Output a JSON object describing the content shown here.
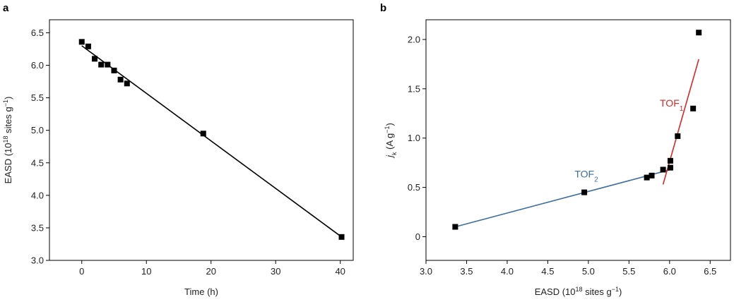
{
  "chart_data": [
    {
      "panel": "a",
      "type": "scatter",
      "xlabel": "Time (h)",
      "ylabel": {
        "base": "EASD (10",
        "exp1": "18",
        "mid": " sites g",
        "exp2": "−1",
        "end": ")"
      },
      "xlim": [
        -5,
        42
      ],
      "ylim": [
        3.0,
        6.7
      ],
      "xticks": [
        0,
        10,
        20,
        30,
        40
      ],
      "xtick_labels": [
        "0",
        "10",
        "20",
        "30",
        "40"
      ],
      "yticks": [
        3.0,
        3.5,
        4.0,
        4.5,
        5.0,
        5.5,
        6.0,
        6.5
      ],
      "ytick_labels": [
        "3.0",
        "3.5",
        "4.0",
        "4.5",
        "5.0",
        "5.5",
        "6.0",
        "6.5"
      ],
      "series": [
        {
          "marker": "square",
          "color": "#000000",
          "x": [
            0,
            1,
            2,
            3,
            4,
            5,
            6,
            7,
            18.8,
            40.2
          ],
          "y": [
            6.36,
            6.29,
            6.1,
            6.01,
            6.01,
            5.92,
            5.78,
            5.72,
            4.95,
            3.36
          ]
        }
      ],
      "fit_lines": [
        {
          "color": "#000000",
          "x": [
            0,
            40.2
          ],
          "y": [
            6.3,
            3.36
          ]
        }
      ],
      "grid": false
    },
    {
      "panel": "b",
      "type": "scatter",
      "xlabel": {
        "base": "EASD (10",
        "exp1": "18",
        "mid": " sites g",
        "exp2": "−1",
        "end": ")"
      },
      "ylabel": {
        "j": "j",
        "k": "k",
        "mid": " (A g",
        "exp": "−1",
        "end": ")"
      },
      "xlim": [
        3.0,
        6.75
      ],
      "ylim": [
        -0.24,
        2.2
      ],
      "xticks": [
        3.0,
        3.5,
        4.0,
        4.5,
        5.0,
        5.5,
        6.0,
        6.5
      ],
      "xtick_labels": [
        "3.0",
        "3.5",
        "4.0",
        "4.5",
        "5.0",
        "5.5",
        "6.0",
        "6.5"
      ],
      "yticks": [
        0,
        0.5,
        1.0,
        1.5,
        2.0
      ],
      "ytick_labels": [
        "0",
        "0.5",
        "1.0",
        "1.5",
        "2.0"
      ],
      "series": [
        {
          "marker": "square",
          "color": "#000000",
          "x": [
            3.36,
            4.95,
            5.72,
            5.78,
            5.92,
            6.01,
            6.01,
            6.1,
            6.29,
            6.36
          ],
          "y": [
            0.1,
            0.45,
            0.6,
            0.62,
            0.68,
            0.7,
            0.77,
            1.02,
            1.3,
            2.07
          ]
        }
      ],
      "fit_lines": [
        {
          "label": "TOF2",
          "color": "#3d6e9e",
          "x": [
            3.36,
            6.01
          ],
          "y": [
            0.1,
            0.68
          ]
        },
        {
          "label": "TOF1",
          "color": "#d42a2a",
          "x": [
            5.92,
            6.36
          ],
          "y": [
            0.53,
            1.8
          ]
        }
      ],
      "annotations": [
        {
          "text": "TOF",
          "sub": "1",
          "color": "#d42a2a",
          "x": 5.88,
          "y": 1.32
        },
        {
          "text": "TOF",
          "sub": "2",
          "color": "#3d6e9e",
          "x": 4.83,
          "y": 0.6
        }
      ],
      "grid": false
    }
  ],
  "panels": {
    "a": "a",
    "b": "b"
  }
}
